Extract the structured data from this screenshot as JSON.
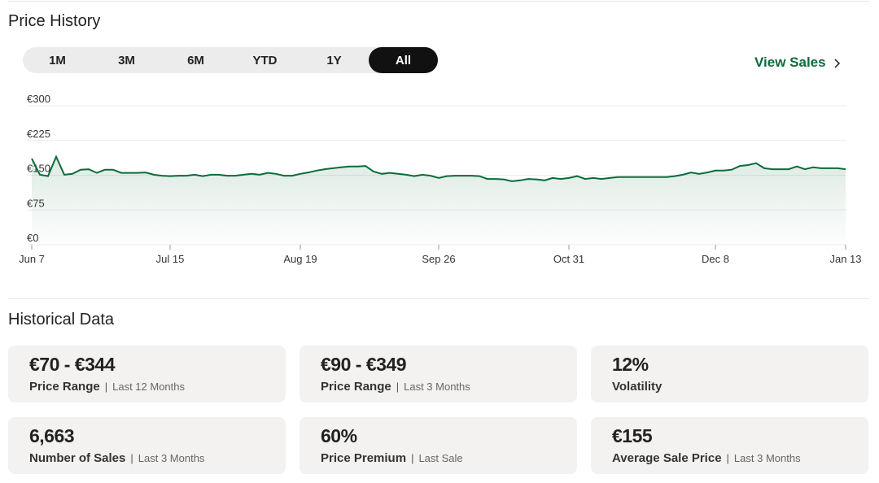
{
  "header": {
    "title": "Price History"
  },
  "tabs": [
    {
      "label": "1M"
    },
    {
      "label": "3M"
    },
    {
      "label": "6M"
    },
    {
      "label": "YTD"
    },
    {
      "label": "1Y"
    },
    {
      "label": "All",
      "active": true
    }
  ],
  "view_sales": "View Sales",
  "chart_data": {
    "type": "line",
    "color": "#0b6b3a",
    "grid": true,
    "categories": [
      "Jun 7",
      null,
      null,
      null,
      null,
      null,
      null,
      null,
      null,
      null,
      null,
      null,
      null,
      null,
      null,
      null,
      null,
      "Jul 15",
      null,
      null,
      null,
      null,
      null,
      null,
      null,
      null,
      null,
      null,
      null,
      null,
      null,
      null,
      null,
      "Aug 19",
      null,
      null,
      null,
      null,
      null,
      null,
      null,
      null,
      null,
      null,
      null,
      null,
      null,
      null,
      null,
      null,
      "Sep 26",
      null,
      null,
      null,
      null,
      null,
      null,
      null,
      null,
      null,
      null,
      null,
      null,
      null,
      null,
      null,
      "Oct 31",
      null,
      null,
      null,
      null,
      null,
      null,
      null,
      null,
      null,
      null,
      null,
      null,
      null,
      null,
      null,
      null,
      null,
      "Dec 8",
      null,
      null,
      null,
      null,
      null,
      null,
      null,
      null,
      null,
      null,
      null,
      null,
      null,
      null,
      null,
      "Jan 13"
    ],
    "values": [
      186,
      151,
      148,
      190,
      151,
      153,
      162,
      163,
      155,
      162,
      162,
      155,
      155,
      155,
      156,
      151,
      149,
      148,
      149,
      149,
      151,
      148,
      151,
      151,
      149,
      149,
      151,
      153,
      151,
      155,
      153,
      149,
      149,
      153,
      156,
      160,
      163,
      165,
      167,
      169,
      169,
      170,
      158,
      153,
      155,
      153,
      151,
      148,
      151,
      149,
      144,
      148,
      149,
      149,
      149,
      148,
      142,
      142,
      141,
      137,
      139,
      142,
      141,
      139,
      144,
      142,
      144,
      148,
      142,
      144,
      142,
      144,
      146,
      146,
      146,
      146,
      146,
      146,
      146,
      148,
      151,
      156,
      153,
      156,
      160,
      160,
      162,
      170,
      172,
      176,
      165,
      163,
      163,
      163,
      169,
      163,
      167,
      165,
      165,
      165,
      163
    ],
    "ylim": [
      0,
      300
    ],
    "yticks": [
      {
        "value": 0,
        "label": "€0"
      },
      {
        "value": 75,
        "label": "€75"
      },
      {
        "value": 150,
        "label": "€150"
      },
      {
        "value": 225,
        "label": "€225"
      },
      {
        "value": 300,
        "label": "€300"
      }
    ]
  },
  "historical": {
    "title": "Historical Data",
    "stats": [
      {
        "value": "€70 - €344",
        "label": "Price Range",
        "period": "Last 12 Months"
      },
      {
        "value": "€90 - €349",
        "label": "Price Range",
        "period": "Last 3 Months"
      },
      {
        "value": "12%",
        "label": "Volatility"
      },
      {
        "value": "6,663",
        "label": "Number of Sales",
        "period": "Last 3 Months"
      },
      {
        "value": "60%",
        "label": "Price Premium",
        "period": "Last Sale"
      },
      {
        "value": "€155",
        "label": "Average Sale Price",
        "period": "Last 3 Months"
      }
    ]
  }
}
